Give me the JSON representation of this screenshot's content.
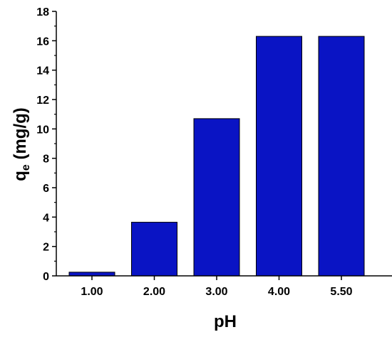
{
  "chart_data": {
    "type": "bar",
    "categories": [
      "1.00",
      "2.00",
      "3.00",
      "4.00",
      "5.50"
    ],
    "values": [
      0.25,
      3.65,
      10.7,
      16.3,
      16.3
    ],
    "xlabel": "pH",
    "ylabel": {
      "main": "q",
      "subscript": "e",
      "rest": " (mg/g)"
    },
    "ylim": [
      0,
      18
    ],
    "yticks": [
      0,
      2,
      4,
      6,
      8,
      10,
      12,
      14,
      16,
      18
    ],
    "grid": false,
    "legend": "none",
    "colors": {
      "bar_fill": "#0a14c4",
      "bar_stroke": "#000000",
      "axis": "#000000"
    }
  }
}
